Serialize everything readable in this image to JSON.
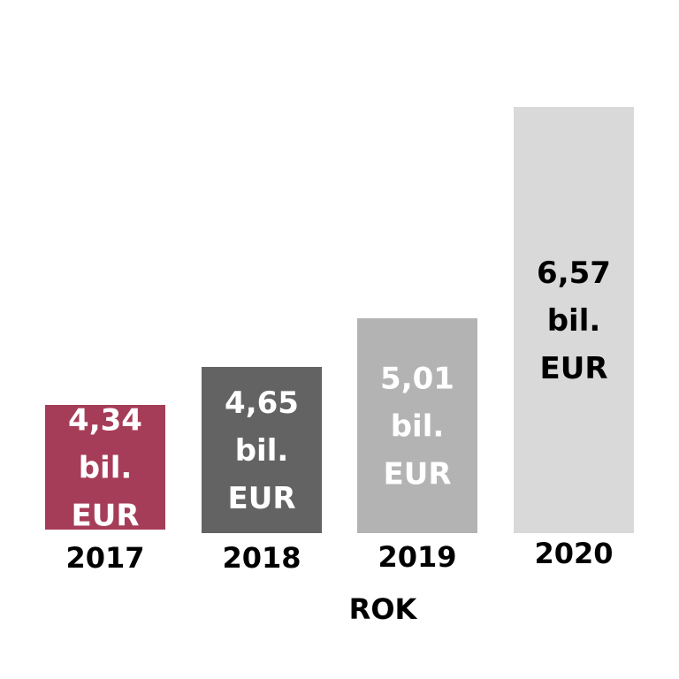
{
  "chart_data": {
    "type": "bar",
    "categories": [
      "2017",
      "2018",
      "2019",
      "2020"
    ],
    "values": [
      4.34,
      4.65,
      5.01,
      6.57
    ],
    "value_labels": [
      [
        "4,34",
        "bil.",
        "EUR"
      ],
      [
        "4,65",
        "bil.",
        "EUR"
      ],
      [
        "5,01",
        "bil.",
        "EUR"
      ],
      [
        "6,57",
        "bil.",
        "EUR"
      ]
    ],
    "bar_colors": [
      "#a63d58",
      "#636363",
      "#b3b3b3",
      "#d9d9d9"
    ],
    "label_colors": [
      "#ffffff",
      "#ffffff",
      "#ffffff",
      "#000000"
    ],
    "xlabel": "ROK",
    "ylabel": "",
    "title": "",
    "grid": false,
    "legend": "none"
  }
}
